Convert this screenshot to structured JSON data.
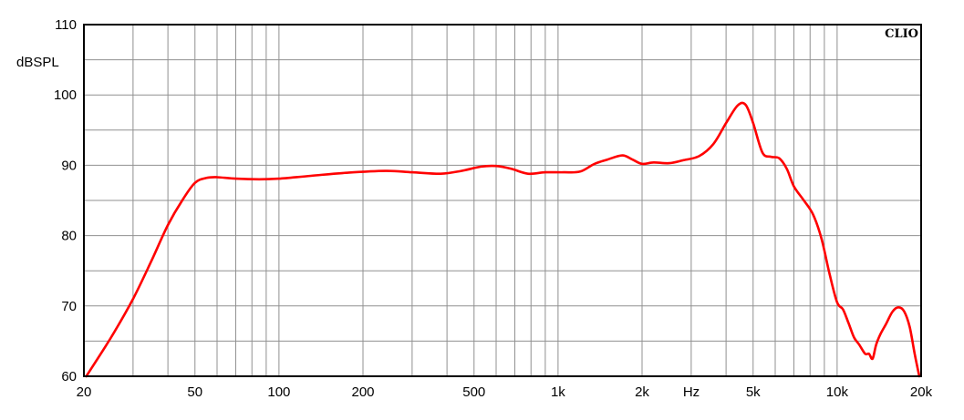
{
  "chart_data": {
    "type": "line",
    "brand": "CLIO",
    "ylabel": "dBSPL",
    "xlabel": "Hz",
    "x_scale": "log",
    "xlim": [
      20,
      20000
    ],
    "ylim": [
      60,
      110
    ],
    "y_ticks": [
      60,
      70,
      80,
      90,
      100,
      110
    ],
    "x_ticks": [
      {
        "value": 20,
        "label": "20"
      },
      {
        "value": 50,
        "label": "50"
      },
      {
        "value": 100,
        "label": "100"
      },
      {
        "value": 200,
        "label": "200"
      },
      {
        "value": 500,
        "label": "500"
      },
      {
        "value": 1000,
        "label": "1k"
      },
      {
        "value": 2000,
        "label": "2k"
      },
      {
        "value": 5000,
        "label": "5k"
      },
      {
        "value": 10000,
        "label": "10k"
      },
      {
        "value": 20000,
        "label": "20k"
      }
    ],
    "grid": true,
    "line_color": "#ff0000",
    "series": [
      {
        "x": [
          20.4,
          25,
          30,
          35,
          40,
          45,
          50,
          55,
          60,
          70,
          85,
          100,
          130,
          170,
          240,
          300,
          380,
          450,
          530,
          600,
          680,
          780,
          900,
          1050,
          1200,
          1350,
          1500,
          1700,
          1850,
          2000,
          2200,
          2500,
          2800,
          3200,
          3600,
          4000,
          4400,
          4700,
          5000,
          5400,
          5800,
          6200,
          6600,
          7000,
          7600,
          8200,
          8800,
          9400,
          10000,
          10500,
          11000,
          11500,
          12000,
          12600,
          13000,
          13400,
          13800,
          14300,
          15000,
          15800,
          16600,
          17400,
          18200,
          19000,
          19700
        ],
        "y": [
          60.0,
          65.5,
          71.0,
          76.5,
          81.5,
          85.0,
          87.5,
          88.2,
          88.3,
          88.1,
          88.0,
          88.1,
          88.5,
          88.9,
          89.2,
          89.0,
          88.8,
          89.2,
          89.8,
          89.9,
          89.5,
          88.8,
          89.0,
          89.0,
          89.1,
          90.2,
          90.8,
          91.4,
          90.8,
          90.2,
          90.4,
          90.3,
          90.7,
          91.3,
          93.0,
          96.0,
          98.5,
          98.6,
          96.0,
          91.8,
          91.2,
          91.0,
          89.5,
          87.0,
          85.0,
          83.0,
          79.5,
          74.5,
          70.5,
          69.5,
          67.5,
          65.5,
          64.5,
          63.2,
          63.2,
          62.5,
          64.5,
          66.0,
          67.5,
          69.2,
          69.8,
          69.2,
          67.0,
          63.0,
          60.0
        ]
      }
    ]
  }
}
